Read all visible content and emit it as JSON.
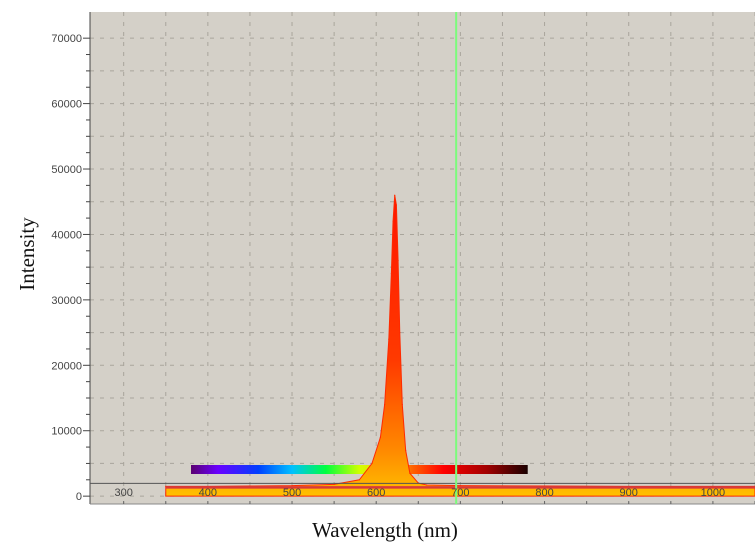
{
  "chart_data": {
    "type": "area",
    "title": "",
    "xlabel": "Wavelength (nm)",
    "ylabel": "Intensity",
    "xlim": [
      260,
      1050
    ],
    "ylim": [
      -1200,
      74000
    ],
    "x_ticks": [
      300,
      400,
      500,
      600,
      700,
      800,
      900,
      1000
    ],
    "y_ticks": [
      0,
      10000,
      20000,
      30000,
      40000,
      50000,
      60000,
      70000
    ],
    "x_tick_labels": [
      "300",
      "400",
      "500",
      "600",
      "700",
      "800",
      "900",
      "1000"
    ],
    "y_tick_labels": [
      "0",
      "10000",
      "20000",
      "30000",
      "40000",
      "50000",
      "60000",
      "70000"
    ],
    "grid": true,
    "marker_line_x": 695,
    "baseline_y": 1500,
    "series": [
      {
        "x": [
          350,
          400,
          450,
          500,
          550,
          580,
          595,
          605,
          610,
          615,
          618,
          620,
          622,
          624,
          626,
          628,
          631,
          635,
          640,
          650,
          660,
          700,
          800,
          900,
          1000,
          1050
        ],
        "y": [
          1500,
          1500,
          1550,
          1600,
          1800,
          2500,
          5000,
          9000,
          14000,
          24000,
          34000,
          42000,
          46000,
          44500,
          36000,
          25000,
          14000,
          7000,
          3500,
          2000,
          1700,
          1600,
          1550,
          1500,
          1500,
          1500
        ]
      }
    ],
    "colors": {
      "plot_background": "#d4d0c8",
      "grid": "#a9a59c",
      "marker_line": "#7cfc7c",
      "baseline": "#d83a3a",
      "spectrum_peak": "#ff1a00"
    }
  }
}
